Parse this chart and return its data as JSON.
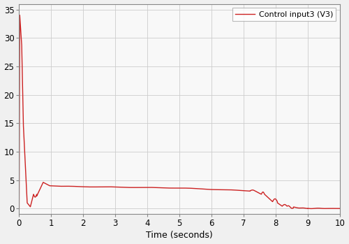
{
  "title": "",
  "xlabel": "Time (seconds)",
  "ylabel": "",
  "legend_label": "Control input3 (V3)",
  "xlim": [
    0,
    10
  ],
  "ylim": [
    -1,
    36
  ],
  "yticks": [
    0,
    5,
    10,
    15,
    20,
    25,
    30,
    35
  ],
  "xticks": [
    0,
    1,
    2,
    3,
    4,
    5,
    6,
    7,
    8,
    9,
    10
  ],
  "line_color": "#cc2222",
  "line_width": 1.0,
  "background_color": "#f8f8f8",
  "grid_color": "#cccccc",
  "spine_color": "#aaaaaa"
}
